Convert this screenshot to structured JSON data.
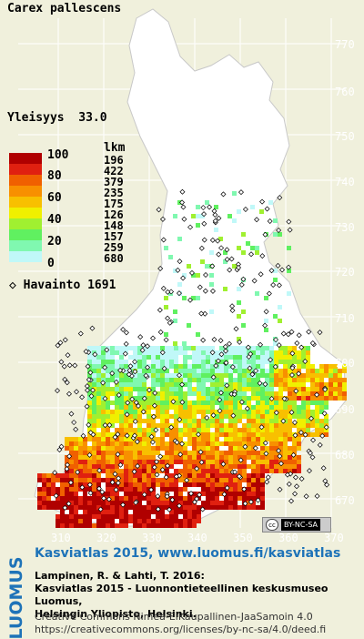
{
  "species": "Carex pallescens",
  "frequency_label": "Yleisyys",
  "frequency_value": "33.0",
  "legend": {
    "lkm_header": "lkm",
    "class_labels": [
      "100",
      "80",
      "60",
      "40",
      "20",
      "0"
    ],
    "counts": [
      "196",
      "422",
      "379",
      "235",
      "175",
      "126",
      "148",
      "157",
      "259",
      "680"
    ],
    "colors": [
      "#b00000",
      "#e02010",
      "#f06000",
      "#f89000",
      "#f8c000",
      "#f0f000",
      "#a0f030",
      "#60f060",
      "#80f8b0",
      "#c0f8f8",
      "#ffffff"
    ]
  },
  "observation": {
    "symbol_label": "◇",
    "label": "Havainto",
    "count": "1691"
  },
  "axes": {
    "y_ticks": [
      "770",
      "760",
      "750",
      "740",
      "730",
      "720",
      "710",
      "700",
      "690",
      "680",
      "670"
    ],
    "x_ticks": [
      "310",
      "320",
      "330",
      "340",
      "350",
      "360",
      "370"
    ]
  },
  "colors": {
    "background": "#f0f0dc",
    "sea": "#f0f0dc",
    "land": "#ffffff",
    "link": "#1e73b8"
  },
  "license_badge": {
    "cc": "cc",
    "text": "BY-NC-SA"
  },
  "footer": {
    "brand": "LUOMUS",
    "title_link": "Kasviatlas 2015, www.luomus.fi/kasviatlas",
    "citation": [
      "Lampinen, R. & Lahti, T. 2016:",
      "Kasviatlas 2015 - Luonnontieteellinen keskusmuseo Luomus,",
      "Helsingin Yliopisto, Helsinki."
    ],
    "license": [
      "Creative Commons Nimeä-EiKaupallinen-JaaSamoin 4.0",
      "https://creativecommons.org/licenses/by-nc-sa/4.0/deed.fi"
    ]
  }
}
